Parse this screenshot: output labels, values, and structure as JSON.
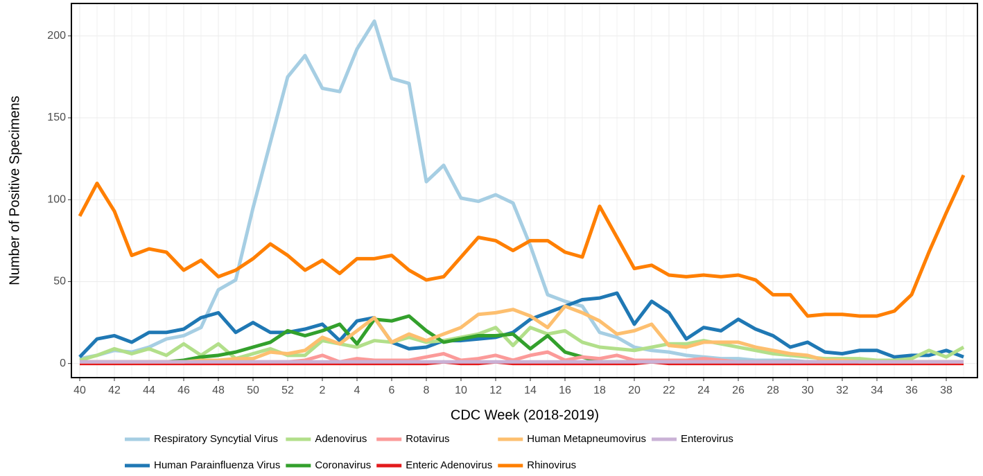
{
  "chart_data": {
    "type": "line",
    "x_label": "CDC Week (2018-2019)",
    "y_label": "Number of Positive Specimens",
    "categories": [
      "40",
      null,
      "42",
      null,
      "44",
      null,
      "46",
      null,
      "48",
      null,
      "50",
      null,
      "52",
      null,
      "2",
      null,
      "4",
      null,
      "6",
      null,
      "8",
      null,
      "10",
      null,
      "12",
      null,
      "14",
      null,
      "16",
      null,
      "18",
      null,
      "20",
      null,
      "22",
      null,
      "24",
      null,
      "26",
      null,
      "28",
      null,
      "30",
      null,
      "32",
      null,
      "34",
      null,
      "36",
      null,
      "38",
      null
    ],
    "ylim": [
      -8.6,
      219.8
    ],
    "yticks": [
      0,
      50,
      100,
      150,
      200
    ],
    "grid": true,
    "legend": "bottom",
    "series": [
      {
        "name": "Respiratory Syncytial Virus",
        "color": "#a6cee3",
        "values": [
          3,
          5,
          8,
          7,
          10,
          15,
          17,
          22,
          45,
          51,
          95,
          135,
          175,
          188,
          168,
          166,
          192,
          209,
          174,
          171,
          111,
          121,
          101,
          99,
          103,
          98,
          72,
          42,
          38,
          35,
          19,
          16,
          10,
          8,
          7,
          5,
          4,
          3,
          3,
          2,
          2,
          2,
          1,
          1,
          1,
          1,
          1,
          1,
          1,
          1,
          1,
          1
        ]
      },
      {
        "name": "Human Parainfluenza Virus",
        "color": "#1f78b4",
        "values": [
          4,
          15,
          17,
          13,
          19,
          19,
          21,
          28,
          31,
          19,
          25,
          19,
          19,
          21,
          24,
          14,
          26,
          28,
          13,
          9,
          10,
          14,
          14,
          15,
          16,
          19,
          27,
          31,
          35,
          39,
          40,
          43,
          24,
          38,
          31,
          15,
          22,
          20,
          27,
          21,
          17,
          10,
          13,
          7,
          6,
          8,
          8,
          4,
          5,
          5,
          8,
          4
        ]
      },
      {
        "name": "Adenovirus",
        "color": "#b2df8a",
        "values": [
          2,
          5,
          9,
          6,
          9,
          5,
          12,
          5,
          12,
          3,
          6,
          9,
          5,
          5,
          14,
          12,
          10,
          14,
          13,
          16,
          13,
          14,
          16,
          18,
          22,
          11,
          22,
          18,
          20,
          13,
          10,
          9,
          8,
          10,
          12,
          12,
          14,
          12,
          10,
          8,
          6,
          5,
          4,
          3,
          3,
          3,
          2,
          2,
          3,
          8,
          4,
          10
        ]
      },
      {
        "name": "Coronavirus",
        "color": "#33a02c",
        "values": [
          1,
          1,
          1,
          1,
          1,
          1,
          2,
          4,
          5,
          7,
          10,
          13,
          20,
          17,
          20,
          24,
          12,
          27,
          26,
          29,
          20,
          13,
          15,
          17,
          17,
          18,
          9,
          17,
          7,
          4,
          1,
          1,
          1,
          1,
          1,
          1,
          1,
          1,
          1,
          1,
          1,
          1,
          1,
          1,
          1,
          1,
          1,
          1,
          1,
          1,
          1,
          1
        ]
      },
      {
        "name": "Rotavirus",
        "color": "#fb9a99",
        "values": [
          1,
          1,
          1,
          1,
          1,
          1,
          1,
          1,
          1,
          1,
          1,
          1,
          1,
          2,
          5,
          1,
          3,
          2,
          2,
          2,
          4,
          6,
          2,
          3,
          5,
          2,
          5,
          7,
          2,
          4,
          3,
          5,
          2,
          2,
          2,
          2,
          3,
          2,
          1,
          1,
          1,
          1,
          1,
          1,
          1,
          1,
          1,
          1,
          1,
          1,
          1,
          1
        ]
      },
      {
        "name": "Enteric Adenovirus",
        "color": "#e31a1c",
        "values": [
          0,
          0,
          0,
          0,
          0,
          0,
          0,
          0,
          0,
          0,
          0,
          0,
          0,
          0,
          0,
          0,
          0,
          0,
          0,
          0,
          0,
          1,
          0,
          0,
          1,
          0,
          0,
          0,
          0,
          0,
          0,
          0,
          0,
          1,
          0,
          0,
          0,
          0,
          0,
          0,
          0,
          0,
          0,
          0,
          0,
          0,
          0,
          0,
          0,
          0,
          0,
          0
        ]
      },
      {
        "name": "Human Metapneumovirus",
        "color": "#fdbf6f",
        "values": [
          1,
          1,
          1,
          1,
          1,
          1,
          1,
          2,
          2,
          3,
          3,
          7,
          6,
          8,
          16,
          12,
          20,
          28,
          13,
          18,
          14,
          18,
          22,
          30,
          31,
          33,
          29,
          22,
          35,
          31,
          26,
          18,
          20,
          24,
          11,
          10,
          13,
          13,
          13,
          10,
          8,
          6,
          5,
          2,
          2,
          1,
          1,
          1,
          1,
          1,
          1,
          1
        ]
      },
      {
        "name": "Rhinovirus",
        "color": "#ff7f00",
        "values": [
          90,
          110,
          93,
          66,
          70,
          68,
          57,
          63,
          53,
          57,
          64,
          73,
          66,
          57,
          63,
          55,
          64,
          64,
          66,
          57,
          51,
          53,
          65,
          77,
          75,
          69,
          75,
          75,
          68,
          65,
          96,
          77,
          58,
          60,
          54,
          53,
          54,
          53,
          54,
          51,
          42,
          42,
          29,
          30,
          30,
          29,
          29,
          32,
          42,
          68,
          92,
          115
        ]
      },
      {
        "name": "Enterovirus",
        "color": "#cab2d6",
        "values": [
          1,
          1,
          1,
          1,
          1,
          1,
          1,
          1,
          1,
          1,
          1,
          1,
          1,
          1,
          1,
          1,
          1,
          1,
          1,
          1,
          1,
          1,
          1,
          1,
          1,
          1,
          1,
          1,
          1,
          1,
          1,
          1,
          1,
          1,
          1,
          1,
          1,
          1,
          1,
          1,
          1,
          1,
          1,
          1,
          1,
          1,
          1,
          1,
          1,
          1,
          1,
          1
        ]
      }
    ]
  }
}
